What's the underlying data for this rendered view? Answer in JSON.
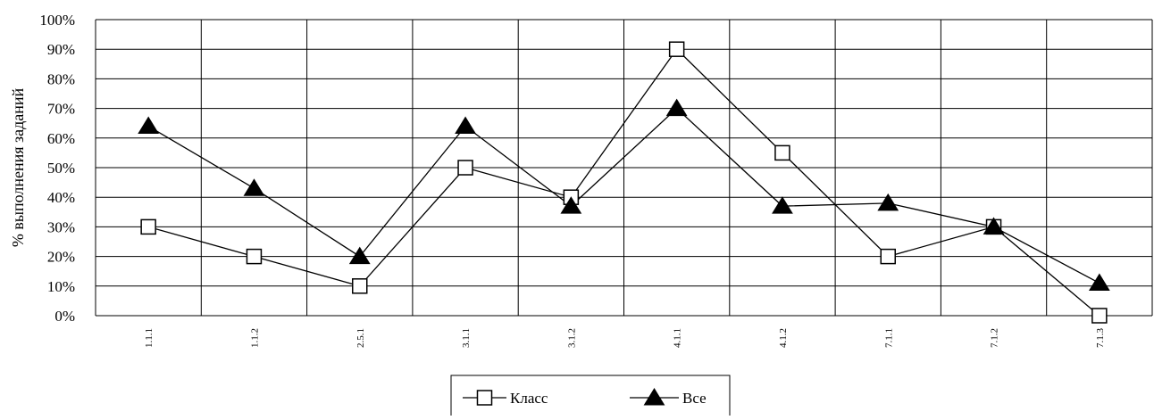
{
  "chart_data": {
    "type": "line",
    "title": "",
    "xlabel": "",
    "ylabel": "% выполнения заданий",
    "categories": [
      "1.1.1",
      "1.1.2",
      "2.5.1",
      "3.1.1",
      "3.1.2",
      "4.1.1",
      "4.1.2",
      "7.1.1",
      "7.1.2",
      "7.1.3"
    ],
    "y_ticks": [
      "0%",
      "10%",
      "20%",
      "30%",
      "40%",
      "50%",
      "60%",
      "70%",
      "80%",
      "90%",
      "100%"
    ],
    "ylim": [
      0,
      100
    ],
    "grid": true,
    "legend_position": "bottom",
    "series": [
      {
        "name": "Класс",
        "marker": "square-open",
        "color": "#000000",
        "values": [
          30,
          20,
          10,
          50,
          40,
          90,
          55,
          20,
          30,
          0
        ]
      },
      {
        "name": "Все",
        "marker": "triangle-filled",
        "color": "#000000",
        "values": [
          64,
          43,
          20,
          64,
          37,
          70,
          37,
          38,
          30,
          11
        ]
      }
    ]
  }
}
